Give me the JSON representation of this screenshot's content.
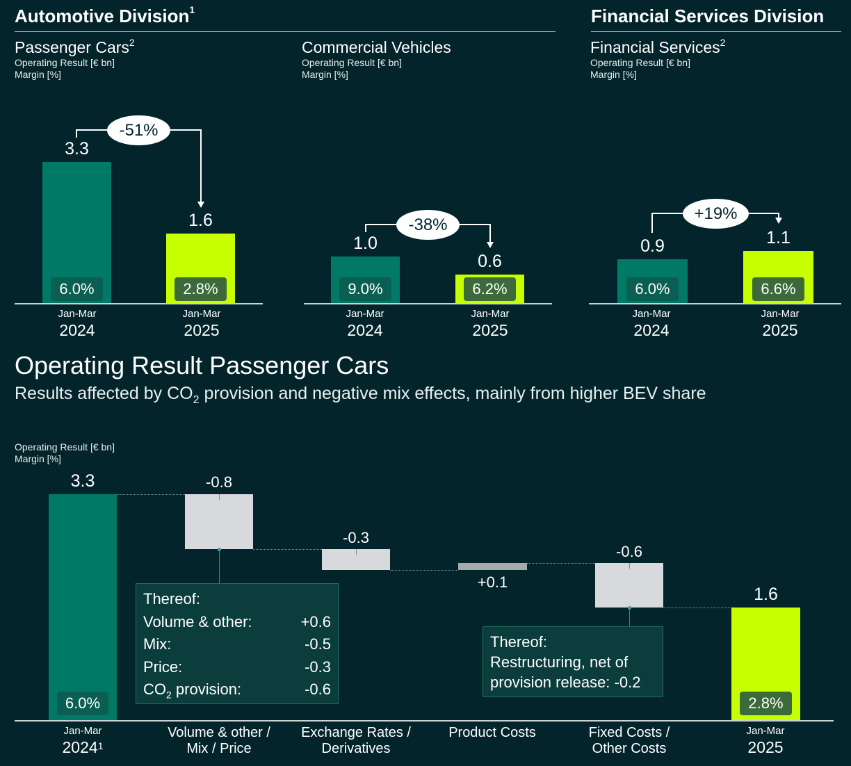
{
  "divisions": {
    "automotive": {
      "title": "Automotive Division",
      "sup": "1"
    },
    "financial": {
      "title": "Financial Services Division"
    }
  },
  "chart_data": [
    {
      "type": "bar",
      "title": "Passenger Cars",
      "title_sup": "2",
      "ylabel": "Operating Result [€ bn]",
      "y2label": "Margin [%]",
      "categories": [
        {
          "period": "Jan-Mar",
          "year": "2024"
        },
        {
          "period": "Jan-Mar",
          "year": "2025"
        }
      ],
      "values": [
        3.3,
        1.6
      ],
      "value_labels": [
        "3.3",
        "1.6"
      ],
      "margins": [
        "6.0%",
        "2.8%"
      ],
      "change": "-51%",
      "colors": [
        "#007a66",
        "#c8ff00"
      ]
    },
    {
      "type": "bar",
      "title": "Commercial Vehicles",
      "ylabel": "Operating Result [€ bn]",
      "y2label": "Margin [%]",
      "categories": [
        {
          "period": "Jan-Mar",
          "year": "2024"
        },
        {
          "period": "Jan-Mar",
          "year": "2025"
        }
      ],
      "values": [
        1.0,
        0.6
      ],
      "value_labels": [
        "1.0",
        "0.6"
      ],
      "margins": [
        "9.0%",
        "6.2%"
      ],
      "change": "-38%",
      "colors": [
        "#007a66",
        "#c8ff00"
      ]
    },
    {
      "type": "bar",
      "title": "Financial Services",
      "title_sup": "2",
      "ylabel": "Operating Result [€ bn]",
      "y2label": "Margin [%]",
      "categories": [
        {
          "period": "Jan-Mar",
          "year": "2024"
        },
        {
          "period": "Jan-Mar",
          "year": "2025"
        }
      ],
      "values": [
        0.9,
        1.1
      ],
      "value_labels": [
        "0.9",
        "1.1"
      ],
      "margins": [
        "6.0%",
        "6.6%"
      ],
      "change": "+19%",
      "colors": [
        "#007a66",
        "#c8ff00"
      ]
    },
    {
      "type": "waterfall",
      "title": "Operating Result Passenger Cars",
      "subtitle_pre": "Results affected by CO",
      "subtitle_sub": "2",
      "subtitle_post": " provision and negative mix effects, mainly from higher BEV share",
      "ylabel": "Operating Result [€ bn]",
      "y2label": "Margin [%]",
      "steps": [
        {
          "label": "Jan-Mar",
          "label2": "2024",
          "label2_sup": "1",
          "value": 3.3,
          "value_label": "3.3",
          "kind": "total",
          "margin": "6.0%"
        },
        {
          "label": "Volume & other / Mix / Price",
          "value": -0.8,
          "value_label": "-0.8",
          "kind": "delta"
        },
        {
          "label": "Exchange Rates / Derivatives",
          "value": -0.3,
          "value_label": "-0.3",
          "kind": "delta"
        },
        {
          "label": "Product Costs",
          "value": 0.1,
          "value_label": "+0.1",
          "kind": "delta"
        },
        {
          "label": "Fixed Costs / Other Costs",
          "value": -0.6,
          "value_label": "-0.6",
          "kind": "delta"
        },
        {
          "label": "Jan-Mar",
          "label2": "2025",
          "value": 1.6,
          "value_label": "1.6",
          "kind": "total",
          "margin": "2.8%"
        }
      ],
      "callouts": [
        {
          "heading": "Thereof:",
          "rows": [
            {
              "label": "Volume & other:",
              "value": "+0.6"
            },
            {
              "label": "Mix:",
              "value": "-0.5"
            },
            {
              "label": "Price:",
              "value": "-0.3"
            },
            {
              "label": "CO",
              "label_sub": "2",
              "label_post": " provision:",
              "value": "-0.6"
            }
          ]
        },
        {
          "heading": "Thereof:",
          "lines": [
            "Restructuring, net of",
            "provision release: -0.2"
          ]
        }
      ]
    }
  ]
}
